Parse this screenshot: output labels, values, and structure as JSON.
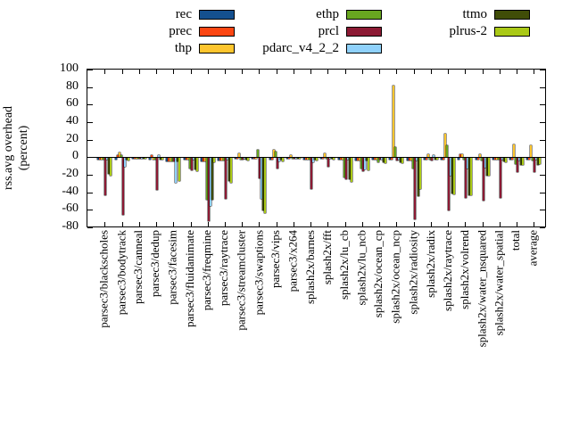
{
  "figure": {
    "background": "#ffffff",
    "axis_color": "#000000"
  },
  "ylabel": {
    "line1": "rss.avg overhead",
    "line2": "(percent)"
  },
  "chart_data": {
    "type": "bar",
    "title": "",
    "xlabel": "",
    "ylabel": "rss.avg overhead (percent)",
    "ylim": [
      -80,
      100
    ],
    "ytick_step": 20,
    "ytick_labels": [
      "-80",
      "-60",
      "-40",
      "-20",
      "0",
      "20",
      "40",
      "60",
      "80",
      "100"
    ],
    "grid": false,
    "legend_position": "top",
    "categories": [
      "parsec3/blackscholes",
      "parsec3/bodytrack",
      "parsec3/canneal",
      "parsec3/dedup",
      "parsec3/facesim",
      "parsec3/fluidanimate",
      "parsec3/freqmine",
      "parsec3/raytrace",
      "parsec3/streamcluster",
      "parsec3/swaptions",
      "parsec3/vips",
      "parsec3/x264",
      "splash2x/barnes",
      "splash2x/fft",
      "splash2x/lu_cb",
      "splash2x/lu_ncb",
      "splash2x/ocean_cp",
      "splash2x/ocean_ncp",
      "splash2x/radiosity",
      "splash2x/radix",
      "splash2x/raytrace",
      "splash2x/volrend",
      "splash2x/water_nsquared",
      "splash2x/water_spatial",
      "total",
      "average"
    ],
    "series": [
      {
        "name": "rec",
        "color": "#14508f",
        "values": [
          -2,
          -2,
          -1,
          -2,
          -4,
          -2,
          -4,
          -3,
          -1,
          -1,
          -2,
          -1,
          -2,
          -1,
          -2,
          -3,
          -2,
          -2,
          -3,
          -2,
          -2,
          -2,
          -2,
          -2,
          -2,
          -2
        ]
      },
      {
        "name": "prec",
        "color": "#fc4612",
        "values": [
          -2,
          2,
          -1,
          2,
          -4,
          -2,
          -4,
          -3,
          -1,
          -1,
          -2,
          -1,
          -2,
          -1,
          -2,
          -3,
          -2,
          -2,
          -3,
          -2,
          -2,
          3,
          -2,
          -2,
          -2,
          -2
        ]
      },
      {
        "name": "thp",
        "color": "#fec52e",
        "values": [
          -2,
          5,
          -1,
          -2,
          -4,
          -2,
          -4,
          -3,
          4,
          -1,
          8,
          2,
          -2,
          4,
          -2,
          -3,
          -2,
          82,
          -3,
          3,
          27,
          3,
          3,
          -2,
          15,
          14
        ]
      },
      {
        "name": "ethp",
        "color": "#68a620",
        "values": [
          -2,
          2,
          -1,
          -2,
          -4,
          -12,
          -47,
          -3,
          -2,
          8,
          6,
          -1,
          -2,
          -1,
          -22,
          -12,
          -5,
          12,
          -12,
          -2,
          14,
          -2,
          -3,
          -2,
          -7,
          -3
        ]
      },
      {
        "name": "prcl",
        "color": "#8c1a34",
        "values": [
          -42,
          -65,
          -1,
          -36,
          -4,
          -14,
          -72,
          -46,
          -2,
          -23,
          -12,
          -1,
          -35,
          -10,
          -24,
          -15,
          -2,
          -3,
          -70,
          -3,
          -60,
          -45,
          -48,
          -45,
          -16,
          -16
        ]
      },
      {
        "name": "pdarc_v4_2_2",
        "color": "#8fd1fb",
        "values": [
          -2,
          -10,
          -1,
          2,
          -28,
          -2,
          -55,
          -2,
          -1,
          -46,
          -4,
          -1,
          -5,
          -1,
          -2,
          -13,
          -2,
          -2,
          -3,
          2,
          -20,
          -12,
          -11,
          -2,
          -3,
          -2
        ]
      },
      {
        "name": "ttmo",
        "color": "#404d08",
        "values": [
          -18,
          -2,
          -1,
          -2,
          -4,
          -13,
          -47,
          -26,
          -2,
          -60,
          -2,
          -1,
          -2,
          -1,
          -24,
          -3,
          -5,
          -5,
          -43,
          -2,
          -40,
          -42,
          -20,
          -4,
          -8,
          -8
        ]
      },
      {
        "name": "plrus-2",
        "color": "#aac916",
        "values": [
          -20,
          -3,
          -1,
          -2,
          -26,
          -15,
          -5,
          -28,
          -3,
          -63,
          -4,
          -1,
          -3,
          -2,
          -27,
          -14,
          -6,
          -6,
          -35,
          -2,
          -41,
          -42,
          -20,
          -5,
          -8,
          -7
        ]
      }
    ]
  }
}
